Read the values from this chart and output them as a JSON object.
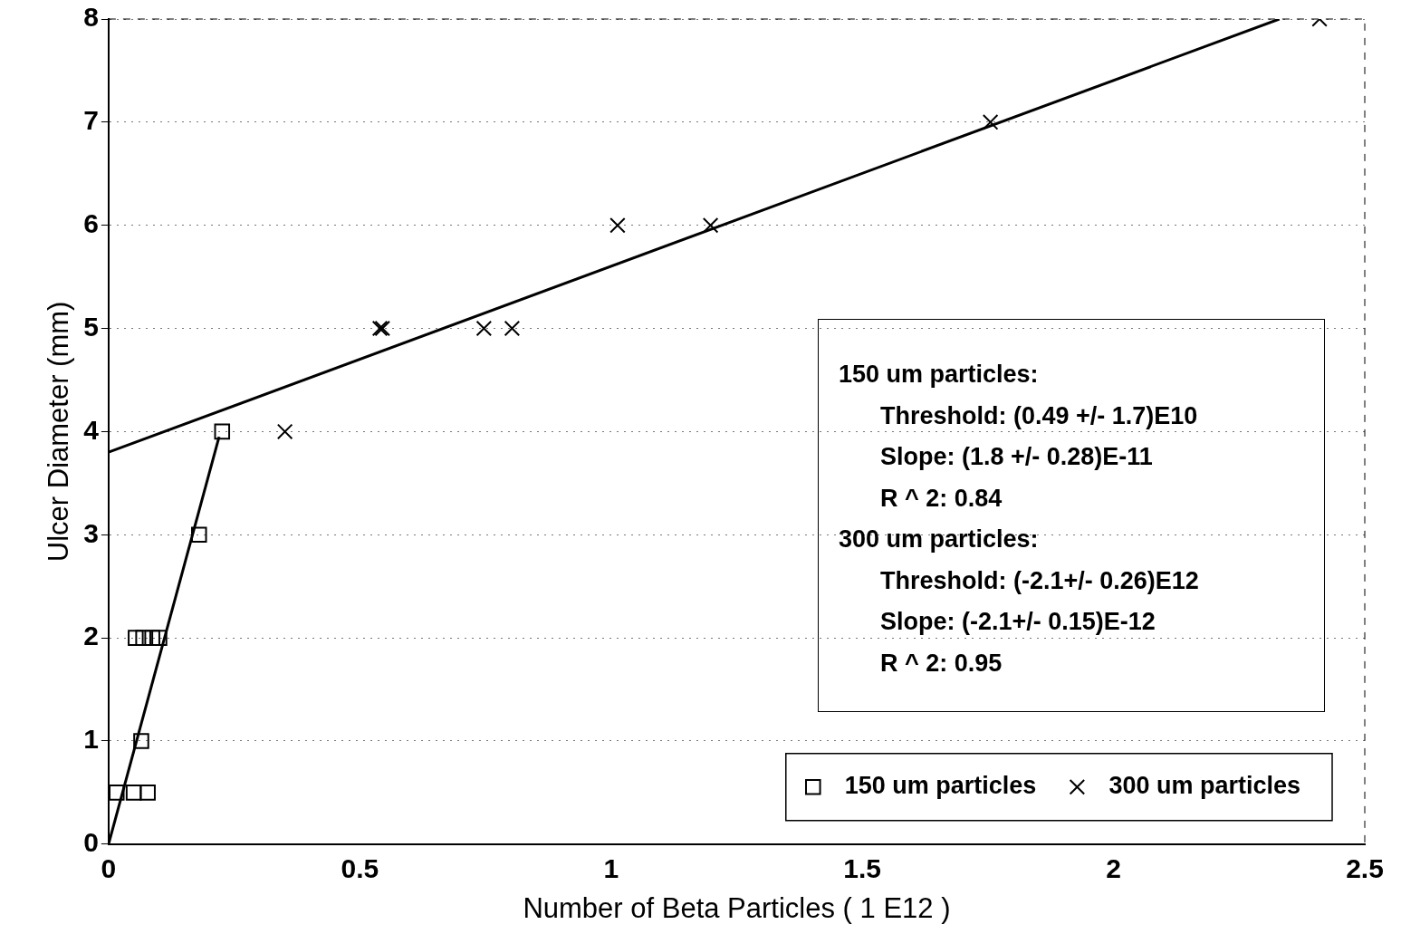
{
  "chart_data": {
    "type": "scatter",
    "xlabel": "Number of Beta Particles ( 1 E12 )",
    "ylabel": "Ulcer Diameter (mm)",
    "xlim": [
      0,
      2.5
    ],
    "xticks": [
      0,
      0.5,
      1,
      1.5,
      2,
      2.5
    ],
    "ylim": [
      0,
      8
    ],
    "yticks": [
      0,
      1,
      2,
      3,
      4,
      5,
      6,
      7,
      8
    ],
    "grid": "y",
    "legend": "bottom right",
    "series": [
      {
        "name": "150 um particles",
        "color": "#000000",
        "marker": "square",
        "x": [
          0.016,
          0.05,
          0.078,
          0.065,
          0.054,
          0.069,
          0.087,
          0.101,
          0.18,
          0.226
        ],
        "values": [
          0.5,
          0.5,
          0.5,
          1,
          2,
          2,
          2,
          2,
          3,
          4
        ]
      },
      {
        "name": "300 um particles",
        "color": "#000000",
        "marker": "cross",
        "x": [
          0.351,
          0.54,
          0.545,
          0.747,
          0.803,
          1.013,
          1.198,
          1.755,
          2.41
        ],
        "values": [
          4,
          5,
          5,
          5,
          5,
          6,
          6,
          7,
          8
        ]
      },
      {
        "type": "line",
        "color": "#000000",
        "marker": "none",
        "x": [
          0,
          0.22
        ],
        "values": [
          0,
          3.95
        ]
      },
      {
        "type": "line",
        "color": "#000000",
        "marker": "none",
        "x": [
          0,
          2.33
        ],
        "values": [
          3.8,
          8
        ]
      }
    ],
    "annotations": [
      "150 um particles:",
      "Threshold: (0.49 +/- 1.7)E10",
      "Slope: (1.8 +/- 0.28)E-11",
      "R ^ 2: 0.84",
      "300 um particles:",
      "Threshold: (-2.1+/- 0.26)E12",
      "Slope: (-2.1+/- 0.15)E-12",
      "R ^ 2: 0.95"
    ]
  }
}
